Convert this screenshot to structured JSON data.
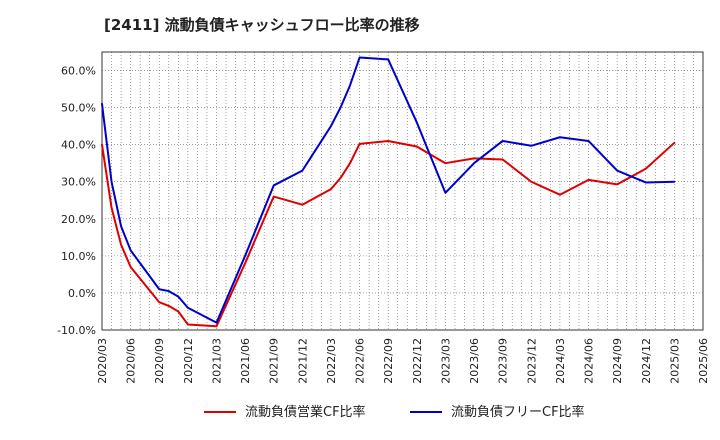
{
  "chart_data": {
    "type": "line",
    "title": "[2411]  流動負債キャッシュフロー比率の推移",
    "xlabel": "",
    "ylabel": "",
    "ylim": [
      -10,
      65
    ],
    "yticks": [
      -10,
      0,
      10,
      20,
      30,
      40,
      50,
      60
    ],
    "ytick_labels": [
      "-10.0%",
      "0.0%",
      "10.0%",
      "20.0%",
      "30.0%",
      "40.0%",
      "50.0%",
      "60.0%"
    ],
    "xticks": [
      "2020/03",
      "2020/06",
      "2020/09",
      "2020/12",
      "2021/03",
      "2021/06",
      "2021/09",
      "2021/12",
      "2022/03",
      "2022/06",
      "2022/09",
      "2022/12",
      "2023/03",
      "2023/06",
      "2023/09",
      "2023/12",
      "2024/03",
      "2024/06",
      "2024/09",
      "2024/12",
      "2025/03",
      "2025/06"
    ],
    "grid": true,
    "legend_position": "bottom",
    "series": [
      {
        "name": "流動負債営業CF比率",
        "color": "#e00000",
        "points": [
          [
            "2020/03",
            40.0
          ],
          [
            "2020/04",
            23.0
          ],
          [
            "2020/05",
            13.0
          ],
          [
            "2020/06",
            7.0
          ],
          [
            "2020/09",
            -2.5
          ],
          [
            "2020/10",
            -3.5
          ],
          [
            "2020/11",
            -5.0
          ],
          [
            "2020/12",
            -8.5
          ],
          [
            "2021/03",
            -9.0
          ],
          [
            "2021/06",
            8.0
          ],
          [
            "2021/09",
            26.0
          ],
          [
            "2021/12",
            23.8
          ],
          [
            "2022/03",
            28.0
          ],
          [
            "2022/04",
            31.0
          ],
          [
            "2022/05",
            35.0
          ],
          [
            "2022/06",
            40.2
          ],
          [
            "2022/09",
            41.0
          ],
          [
            "2022/12",
            39.5
          ],
          [
            "2023/01",
            38.0
          ],
          [
            "2023/03",
            35.0
          ],
          [
            "2023/06",
            36.3
          ],
          [
            "2023/09",
            36.0
          ],
          [
            "2023/12",
            30.0
          ],
          [
            "2024/03",
            26.5
          ],
          [
            "2024/06",
            30.5
          ],
          [
            "2024/09",
            29.3
          ],
          [
            "2024/12",
            33.5
          ],
          [
            "2025/03",
            40.5
          ]
        ]
      },
      {
        "name": "流動負債フリーCF比率",
        "color": "#0000cc",
        "points": [
          [
            "2020/03",
            51.0
          ],
          [
            "2020/04",
            30.0
          ],
          [
            "2020/05",
            18.0
          ],
          [
            "2020/06",
            11.5
          ],
          [
            "2020/09",
            1.0
          ],
          [
            "2020/10",
            0.5
          ],
          [
            "2020/11",
            -1.0
          ],
          [
            "2020/12",
            -4.0
          ],
          [
            "2021/03",
            -8.0
          ],
          [
            "2021/06",
            10.0
          ],
          [
            "2021/09",
            29.0
          ],
          [
            "2021/12",
            33.0
          ],
          [
            "2022/01",
            37.0
          ],
          [
            "2022/03",
            45.0
          ],
          [
            "2022/04",
            50.0
          ],
          [
            "2022/05",
            56.0
          ],
          [
            "2022/06",
            63.5
          ],
          [
            "2022/09",
            63.0
          ],
          [
            "2022/12",
            46.0
          ],
          [
            "2023/03",
            27.0
          ],
          [
            "2023/06",
            35.0
          ],
          [
            "2023/09",
            41.0
          ],
          [
            "2023/12",
            39.7
          ],
          [
            "2024/03",
            42.0
          ],
          [
            "2024/06",
            41.0
          ],
          [
            "2024/09",
            33.0
          ],
          [
            "2024/12",
            29.8
          ],
          [
            "2025/03",
            30.0
          ]
        ]
      }
    ]
  }
}
